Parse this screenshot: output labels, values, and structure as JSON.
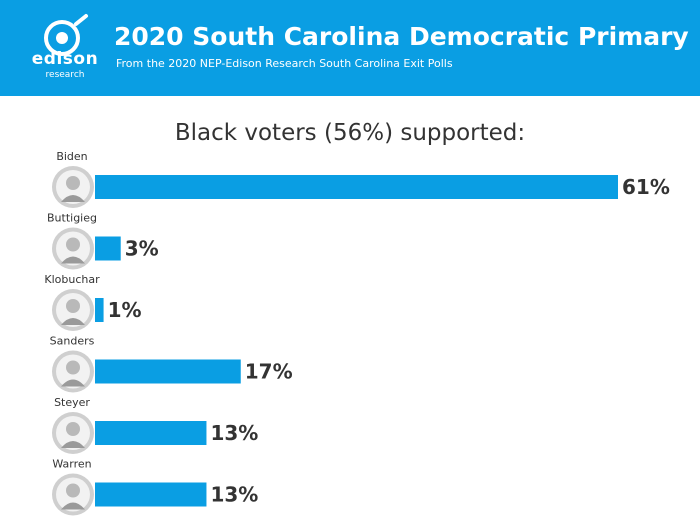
{
  "header": {
    "brand": "edison",
    "brand_sub": "research",
    "title": "2020 South Carolina Democratic Primary",
    "subtitle": "From the 2020 NEP-Edison Research South Carolina Exit Polls"
  },
  "colors": {
    "header_bg": "#0a9ee3",
    "bar": "#0a9ee3",
    "text": "#333333"
  },
  "chart_data": {
    "type": "bar",
    "orientation": "horizontal",
    "title": "Black voters (56%) supported:",
    "categories": [
      "Biden",
      "Buttigieg",
      "Klobuchar",
      "Sanders",
      "Steyer",
      "Warren"
    ],
    "values": [
      61,
      3,
      1,
      17,
      13,
      13
    ],
    "value_labels": [
      "61%",
      "3%",
      "1%",
      "17%",
      "13%",
      "13%"
    ],
    "xlabel": "",
    "ylabel": "",
    "xlim": [
      0,
      61
    ],
    "grid": false,
    "legend": "none"
  }
}
